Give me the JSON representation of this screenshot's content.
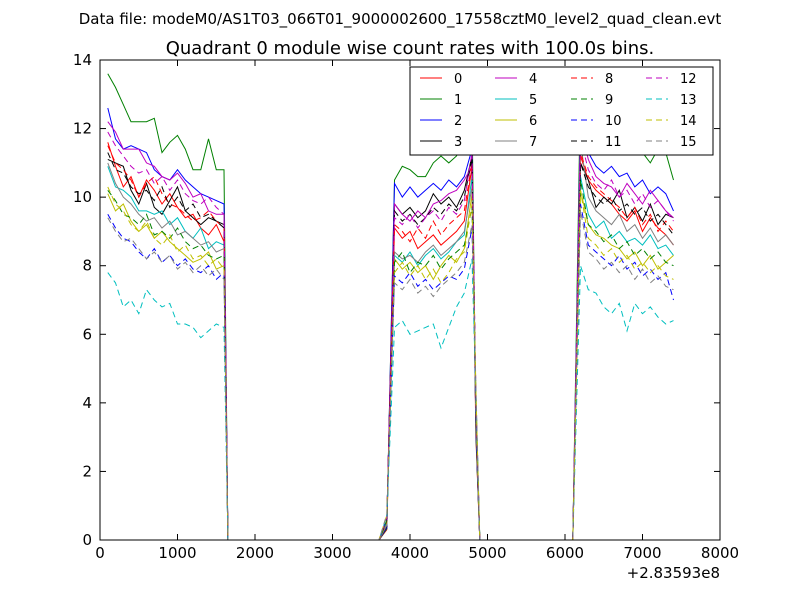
{
  "figure": {
    "suptitle": "Data file: modeM0/AS1T03_066T01_9000002600_17558cztM0_level2_quad_clean.evt"
  },
  "chart_data": {
    "type": "line",
    "title": "Quadrant 0 module wise count rates with 100.0s bins.",
    "xlabel": "",
    "ylabel": "",
    "xlim": [
      0,
      8000
    ],
    "ylim": [
      0,
      14
    ],
    "x_ticks": [
      0,
      1000,
      2000,
      3000,
      4000,
      5000,
      6000,
      7000,
      8000
    ],
    "y_ticks": [
      0,
      2,
      4,
      6,
      8,
      10,
      12,
      14
    ],
    "x_tick_labels": [
      "0",
      "1000",
      "2000",
      "3000",
      "4000",
      "5000",
      "6000",
      "7000",
      "8000"
    ],
    "y_tick_labels": [
      "0",
      "2",
      "4",
      "6",
      "8",
      "10",
      "12",
      "14"
    ],
    "x_offset_label": "+2.83593e8",
    "grid": false,
    "legend": {
      "placement": "top-right",
      "columns": 4
    },
    "segments": [
      {
        "x_start": 100,
        "x_step": 100,
        "count": 16
      },
      {
        "x_start": 3800,
        "x_step": 100,
        "count": 11
      },
      {
        "x_start": 6200,
        "x_step": 100,
        "count": 13
      }
    ],
    "series": [
      {
        "name": "0",
        "color": "#ff0000",
        "dash": "solid",
        "segments": [
          [
            11.6,
            10.9,
            10.3,
            10.6,
            10.0,
            10.5,
            10.2,
            9.8,
            10.1,
            9.7,
            9.4,
            9.5,
            9.1,
            8.9,
            9.2,
            8.7
          ],
          [
            9.1,
            8.8,
            9.0,
            8.5,
            8.7,
            8.9,
            8.6,
            8.8,
            9.0,
            9.3,
            10.9
          ],
          [
            11.2,
            10.5,
            10.2,
            10.0,
            9.8,
            9.5,
            9.3,
            9.6,
            9.0,
            9.4,
            9.1,
            8.9,
            8.6
          ]
        ]
      },
      {
        "name": "1",
        "color": "#008000",
        "dash": "solid",
        "segments": [
          [
            13.6,
            13.2,
            12.7,
            12.2,
            12.2,
            12.2,
            12.3,
            11.3,
            11.6,
            11.8,
            11.4,
            10.8,
            10.8,
            11.7,
            10.8,
            10.8
          ],
          [
            10.5,
            10.9,
            10.8,
            10.6,
            10.6,
            11.0,
            11.2,
            11.0,
            11.2,
            11.7,
            12.6
          ],
          [
            13.2,
            12.5,
            12.0,
            11.5,
            11.8,
            11.5,
            11.3,
            11.6,
            11.3,
            11.0,
            11.4,
            11.3,
            10.5
          ]
        ]
      },
      {
        "name": "2",
        "color": "#0000ff",
        "dash": "solid",
        "segments": [
          [
            12.6,
            11.7,
            11.4,
            11.5,
            11.4,
            11.3,
            10.8,
            10.6,
            10.5,
            10.8,
            10.5,
            10.3,
            10.1,
            10.0,
            9.9,
            9.8
          ],
          [
            10.4,
            10.0,
            10.3,
            10.0,
            10.2,
            10.4,
            10.2,
            10.5,
            10.3,
            10.6,
            11.4
          ],
          [
            12.3,
            11.3,
            10.9,
            10.7,
            10.9,
            10.6,
            10.7,
            10.3,
            10.5,
            10.1,
            10.3,
            10.1,
            9.6
          ]
        ]
      },
      {
        "name": "3",
        "color": "#000000",
        "dash": "solid",
        "segments": [
          [
            11.1,
            11.0,
            10.9,
            10.2,
            9.8,
            10.4,
            9.7,
            9.5,
            9.9,
            10.3,
            9.6,
            9.4,
            9.2,
            9.4,
            9.3,
            9.2
          ],
          [
            9.8,
            9.5,
            9.7,
            9.4,
            9.6,
            10.1,
            9.8,
            10.0,
            9.7,
            10.2,
            11.2
          ],
          [
            11.0,
            10.5,
            9.7,
            10.0,
            9.8,
            10.2,
            9.4,
            9.7,
            9.3,
            9.8,
            9.2,
            9.5,
            9.4
          ]
        ]
      },
      {
        "name": "4",
        "color": "#bf00bf",
        "dash": "solid",
        "segments": [
          [
            12.2,
            11.9,
            11.4,
            11.4,
            11.4,
            11.0,
            10.9,
            10.6,
            10.5,
            10.7,
            10.4,
            10.0,
            10.1,
            9.6,
            9.5,
            9.5
          ],
          [
            9.8,
            9.5,
            9.3,
            9.6,
            9.4,
            9.8,
            9.9,
            10.1,
            10.2,
            10.5,
            10.9
          ],
          [
            12.0,
            11.1,
            10.6,
            10.4,
            10.3,
            10.0,
            10.4,
            10.1,
            9.8,
            10.2,
            9.9,
            9.6,
            9.4
          ]
        ]
      },
      {
        "name": "5",
        "color": "#00bfbf",
        "dash": "solid",
        "segments": [
          [
            10.9,
            10.3,
            10.2,
            10.0,
            9.6,
            9.6,
            9.5,
            9.6,
            9.2,
            9.4,
            9.0,
            8.8,
            9.1,
            8.5,
            8.7,
            8.6
          ],
          [
            8.3,
            8.1,
            8.4,
            8.0,
            8.3,
            8.5,
            8.2,
            8.4,
            8.7,
            8.9,
            10.6
          ],
          [
            10.6,
            9.5,
            9.1,
            9.3,
            8.8,
            9.0,
            8.7,
            8.8,
            8.6,
            8.9,
            8.5,
            8.6,
            8.3
          ]
        ]
      },
      {
        "name": "6",
        "color": "#bfbf00",
        "dash": "solid",
        "segments": [
          [
            10.1,
            9.6,
            9.8,
            9.3,
            9.0,
            9.2,
            8.8,
            9.0,
            8.7,
            8.5,
            8.3,
            8.1,
            8.2,
            8.4,
            7.9,
            8.0
          ],
          [
            8.2,
            7.9,
            8.1,
            7.8,
            8.0,
            7.6,
            8.0,
            8.3,
            8.1,
            8.5,
            10.1
          ],
          [
            10.2,
            9.2,
            8.9,
            8.8,
            8.6,
            8.5,
            8.2,
            8.4,
            8.0,
            8.3,
            7.9,
            8.1,
            8.3
          ]
        ]
      },
      {
        "name": "7",
        "color": "#808080",
        "dash": "solid",
        "segments": [
          [
            11.0,
            10.4,
            10.0,
            9.8,
            9.5,
            9.3,
            9.4,
            9.1,
            9.3,
            8.9,
            9.0,
            8.8,
            8.6,
            8.7,
            8.4,
            8.5
          ],
          [
            8.4,
            8.2,
            8.3,
            8.1,
            8.4,
            8.6,
            8.3,
            8.5,
            8.7,
            9.0,
            10.3
          ],
          [
            11.6,
            10.0,
            9.6,
            9.4,
            9.2,
            9.5,
            9.0,
            9.2,
            8.8,
            9.1,
            8.7,
            8.9,
            8.6
          ]
        ]
      },
      {
        "name": "8",
        "color": "#ff0000",
        "dash": "dashed",
        "segments": [
          [
            11.5,
            11.0,
            10.8,
            10.5,
            10.0,
            10.4,
            10.6,
            10.1,
            9.8,
            9.7,
            9.5,
            9.3,
            9.4,
            9.6,
            9.3,
            9.1
          ],
          [
            9.2,
            9.0,
            8.7,
            9.1,
            8.8,
            9.3,
            8.9,
            9.2,
            9.4,
            9.6,
            11.0
          ],
          [
            11.3,
            10.6,
            10.3,
            10.1,
            9.9,
            9.7,
            9.4,
            9.7,
            9.2,
            9.5,
            9.0,
            9.3,
            9.0
          ]
        ]
      },
      {
        "name": "9",
        "color": "#008000",
        "dash": "dashed",
        "segments": [
          [
            10.2,
            9.9,
            9.5,
            9.4,
            9.2,
            9.5,
            8.9,
            9.0,
            8.8,
            9.1,
            8.7,
            8.5,
            8.6,
            8.3,
            8.2,
            8.3
          ],
          [
            8.1,
            8.4,
            7.8,
            8.1,
            8.0,
            8.3,
            7.9,
            8.2,
            8.4,
            8.6,
            9.7
          ],
          [
            10.5,
            9.2,
            9.0,
            8.7,
            8.9,
            8.5,
            8.7,
            8.3,
            8.5,
            8.2,
            8.4,
            8.1,
            8.0
          ]
        ]
      },
      {
        "name": "10",
        "color": "#0000ff",
        "dash": "dashed",
        "segments": [
          [
            9.5,
            9.1,
            8.8,
            8.7,
            8.4,
            8.2,
            8.5,
            8.1,
            8.3,
            8.0,
            8.2,
            7.9,
            7.8,
            8.0,
            7.6,
            7.8
          ],
          [
            7.7,
            7.5,
            7.8,
            7.4,
            7.6,
            7.3,
            7.5,
            7.7,
            7.6,
            7.9,
            9.1
          ],
          [
            9.8,
            8.6,
            8.4,
            8.2,
            8.0,
            8.3,
            7.9,
            8.1,
            7.7,
            7.9,
            7.6,
            7.8,
            7.0
          ]
        ]
      },
      {
        "name": "11",
        "color": "#000000",
        "dash": "dashed",
        "segments": [
          [
            11.3,
            10.8,
            10.7,
            10.3,
            10.1,
            10.2,
            9.9,
            10.3,
            9.7,
            10.0,
            9.6,
            9.8,
            9.4,
            9.5,
            9.3,
            9.1
          ],
          [
            9.6,
            9.3,
            9.5,
            9.2,
            9.4,
            9.7,
            9.5,
            9.8,
            9.6,
            10.0,
            11.1
          ],
          [
            11.0,
            10.3,
            10.0,
            9.8,
            10.0,
            9.6,
            9.8,
            9.5,
            9.7,
            9.3,
            9.5,
            9.2,
            8.9
          ]
        ]
      },
      {
        "name": "12",
        "color": "#bf00bf",
        "dash": "dashed",
        "segments": [
          [
            11.9,
            11.5,
            11.2,
            10.9,
            10.7,
            10.8,
            10.4,
            10.6,
            10.2,
            10.5,
            10.1,
            9.9,
            9.8,
            10.0,
            9.7,
            9.5
          ],
          [
            9.4,
            9.2,
            9.5,
            9.1,
            9.4,
            9.6,
            9.3,
            9.7,
            9.5,
            9.9,
            11.3
          ],
          [
            11.7,
            10.8,
            10.4,
            10.2,
            10.5,
            10.0,
            10.2,
            9.8,
            10.1,
            9.7,
            9.9,
            9.6,
            9.3
          ]
        ]
      },
      {
        "name": "13",
        "color": "#00bfbf",
        "dash": "dashed",
        "segments": [
          [
            7.8,
            7.5,
            6.8,
            7.0,
            6.6,
            7.3,
            7.0,
            6.8,
            6.9,
            6.3,
            6.3,
            6.2,
            5.9,
            6.1,
            6.3,
            6.2
          ],
          [
            6.2,
            6.4,
            6.0,
            6.1,
            6.2,
            6.3,
            5.6,
            6.2,
            6.8,
            7.2,
            8.2
          ],
          [
            8.0,
            7.3,
            7.2,
            6.8,
            6.6,
            6.9,
            6.1,
            6.9,
            6.6,
            6.8,
            6.5,
            6.3,
            6.4
          ]
        ]
      },
      {
        "name": "14",
        "color": "#bfbf00",
        "dash": "dashed",
        "segments": [
          [
            10.3,
            9.8,
            9.6,
            9.2,
            9.0,
            9.3,
            8.8,
            8.6,
            8.9,
            8.4,
            8.6,
            8.2,
            8.3,
            8.0,
            8.2,
            7.9
          ],
          [
            7.8,
            8.1,
            7.7,
            8.0,
            7.6,
            7.9,
            7.5,
            7.8,
            8.2,
            8.4,
            9.8
          ],
          [
            10.2,
            8.8,
            8.6,
            8.3,
            8.5,
            8.1,
            8.3,
            7.9,
            8.1,
            7.8,
            8.0,
            7.7,
            7.6
          ]
        ]
      },
      {
        "name": "15",
        "color": "#808080",
        "dash": "dashed",
        "segments": [
          [
            9.4,
            9.0,
            8.7,
            8.8,
            8.5,
            8.2,
            8.4,
            8.1,
            8.3,
            7.9,
            8.1,
            7.8,
            8.0,
            7.7,
            7.9,
            7.6
          ],
          [
            7.5,
            7.3,
            7.6,
            7.2,
            7.4,
            7.1,
            7.4,
            7.6,
            7.8,
            8.1,
            9.2
          ],
          [
            9.6,
            8.4,
            8.2,
            7.9,
            8.1,
            7.8,
            8.0,
            7.6,
            7.9,
            7.5,
            7.7,
            7.4,
            7.3
          ]
        ]
      }
    ]
  }
}
